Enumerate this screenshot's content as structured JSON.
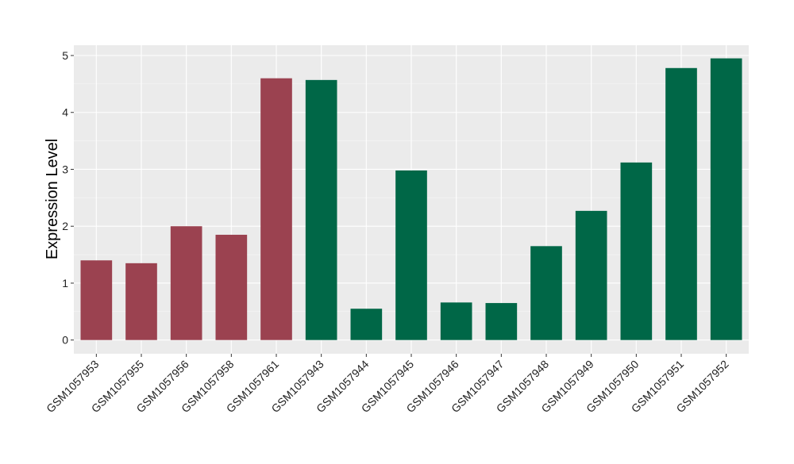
{
  "chart_data": {
    "type": "bar",
    "title": "",
    "xlabel": "",
    "ylabel": "Expression Level",
    "ylim": [
      -0.25,
      5.2
    ],
    "yticks": [
      0,
      1,
      2,
      3,
      4,
      5
    ],
    "grid": true,
    "legend": "none",
    "categories": [
      "GSM1057953",
      "GSM1057955",
      "GSM1057956",
      "GSM1057958",
      "GSM1057961",
      "GSM1057943",
      "GSM1057944",
      "GSM1057945",
      "GSM1057946",
      "GSM1057947",
      "GSM1057948",
      "GSM1057949",
      "GSM1057950",
      "GSM1057951",
      "GSM1057952"
    ],
    "values": [
      1.4,
      1.35,
      2.0,
      1.85,
      4.6,
      4.57,
      0.55,
      2.98,
      0.66,
      0.65,
      1.65,
      2.27,
      3.12,
      4.78,
      4.95
    ],
    "groups": [
      "a",
      "a",
      "a",
      "a",
      "a",
      "b",
      "b",
      "b",
      "b",
      "b",
      "b",
      "b",
      "b",
      "b",
      "b"
    ],
    "colors": {
      "a": "#9b4250",
      "b": "#006747"
    }
  }
}
